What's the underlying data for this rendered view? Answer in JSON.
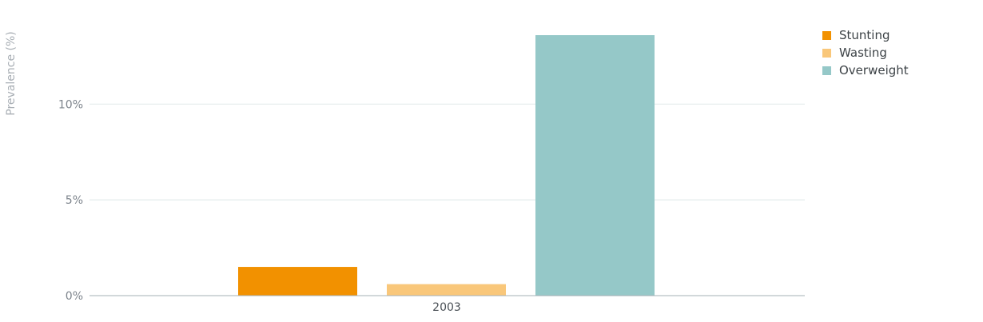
{
  "chart_data": {
    "type": "bar",
    "categories": [
      "2003"
    ],
    "series": [
      {
        "name": "Stunting",
        "values": [
          1.5
        ],
        "color": "#F29100"
      },
      {
        "name": "Wasting",
        "values": [
          0.6
        ],
        "color": "#F9C77A"
      },
      {
        "name": "Overweight",
        "values": [
          13.6
        ],
        "color": "#95C8C8"
      }
    ],
    "ylabel": "Prevalence (%)",
    "ylim": [
      0,
      13.6
    ],
    "yticks": [
      {
        "value": 0,
        "label": "0%"
      },
      {
        "value": 5,
        "label": "5%"
      },
      {
        "value": 10,
        "label": "10%"
      }
    ],
    "grid": true,
    "legend_position": "top-right"
  }
}
